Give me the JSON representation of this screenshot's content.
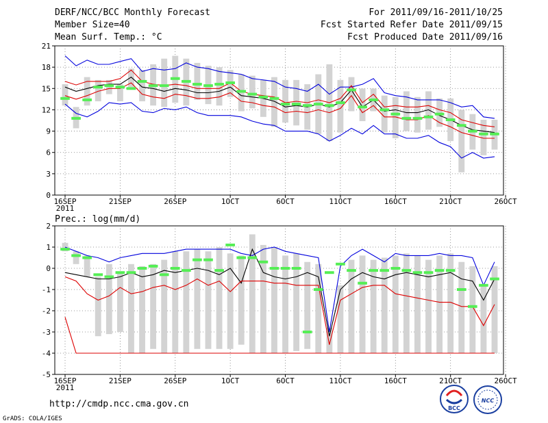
{
  "header": {
    "title": "DERF/NCC/BCC Monthly Forecast",
    "member_size": "Member Size=40",
    "variable": "Mean Surf. Temp.: °C",
    "period": "For 2011/09/16-2011/10/25",
    "fcst_started": "Fcst Started Refer Date 2011/09/15",
    "fcst_produced": "Fcst Produced Date 2011/09/16"
  },
  "footer": {
    "url": "http://cmdp.ncc.cma.gov.cn",
    "credit": "GrADS: COLA/IGES",
    "logo_left": "BCC",
    "logo_right": "NCC"
  },
  "colors": {
    "box": "#d3d3d3",
    "ensemble_mean": "#000000",
    "upper": "#0000dd",
    "lower": "#dd0000",
    "mid_red": "#dd0000",
    "marker": "#55ee55"
  },
  "chart_data": [
    {
      "type": "line",
      "title": "Mean Surf. Temp.: °C",
      "ylim": [
        0,
        21
      ],
      "yticks": [
        0,
        3,
        6,
        9,
        12,
        15,
        18,
        21
      ],
      "x_tick_labels": [
        "16SEP",
        "21SEP",
        "26SEP",
        "1OCT",
        "6OCT",
        "11OCT",
        "16OCT",
        "21OCT",
        "26OCT"
      ],
      "x_sub_label": "2011",
      "days": 40,
      "series": [
        {
          "name": "upper",
          "color": "#0000dd",
          "values": [
            19.6,
            18.2,
            19.0,
            18.4,
            18.4,
            18.8,
            19.2,
            17.4,
            17.8,
            17.6,
            17.8,
            18.6,
            18.0,
            17.8,
            17.4,
            17.2,
            17.0,
            16.4,
            16.2,
            16.0,
            15.2,
            15.0,
            14.6,
            15.6,
            14.2,
            15.2,
            15.2,
            15.6,
            16.4,
            14.4,
            14.0,
            13.8,
            13.4,
            13.4,
            13.4,
            13.0,
            12.4,
            12.6,
            11.0,
            10.8
          ]
        },
        {
          "name": "mid-upper",
          "color": "#dd0000",
          "values": [
            16.0,
            15.5,
            16.0,
            16.0,
            16.0,
            16.4,
            17.6,
            16.0,
            15.6,
            15.4,
            15.6,
            15.4,
            15.0,
            15.0,
            15.0,
            15.8,
            14.6,
            14.2,
            14.0,
            13.8,
            13.0,
            13.2,
            13.0,
            13.4,
            13.0,
            13.6,
            15.4,
            13.0,
            14.2,
            12.4,
            12.6,
            12.4,
            12.4,
            12.6,
            12.0,
            11.6,
            10.6,
            10.2,
            9.8,
            9.6
          ]
        },
        {
          "name": "ensemble-mean",
          "color": "#000000",
          "values": [
            15.2,
            14.6,
            15.0,
            15.4,
            15.6,
            15.6,
            16.6,
            15.2,
            15.0,
            14.6,
            15.0,
            14.8,
            14.4,
            14.4,
            14.6,
            15.2,
            14.0,
            13.8,
            13.6,
            13.2,
            12.4,
            12.6,
            12.4,
            12.8,
            12.4,
            13.0,
            14.8,
            12.4,
            13.4,
            11.8,
            12.0,
            11.6,
            11.6,
            12.0,
            11.2,
            10.6,
            9.8,
            9.2,
            9.0,
            8.8
          ]
        },
        {
          "name": "mid-lower",
          "color": "#dd0000",
          "values": [
            14.0,
            13.5,
            14.0,
            14.6,
            15.0,
            15.0,
            15.8,
            14.2,
            13.8,
            13.6,
            14.2,
            14.0,
            13.6,
            13.6,
            13.8,
            14.4,
            13.2,
            13.0,
            12.6,
            12.4,
            11.6,
            11.8,
            11.6,
            12.0,
            11.6,
            12.2,
            14.0,
            11.6,
            12.6,
            11.0,
            11.0,
            10.6,
            10.6,
            11.2,
            10.2,
            9.6,
            8.8,
            8.4,
            8.0,
            8.0
          ]
        },
        {
          "name": "lower",
          "color": "#0000dd",
          "values": [
            12.8,
            11.5,
            11.0,
            11.8,
            13.0,
            12.8,
            13.0,
            11.8,
            11.6,
            12.2,
            12.0,
            12.4,
            11.6,
            11.2,
            11.2,
            11.2,
            11.0,
            10.4,
            10.0,
            9.8,
            9.0,
            9.0,
            9.0,
            8.6,
            7.6,
            8.4,
            9.4,
            8.6,
            9.8,
            8.6,
            8.6,
            8.0,
            8.0,
            8.4,
            7.4,
            6.8,
            5.2,
            6.0,
            5.2,
            5.4
          ]
        }
      ],
      "boxes": [
        [
          12.6,
          15.6
        ],
        [
          9.4,
          12.4
        ],
        [
          12.6,
          16.6
        ],
        [
          13.2,
          16.2
        ],
        [
          14.2,
          16.2
        ],
        [
          13.2,
          15.6
        ],
        [
          15.2,
          17.8
        ],
        [
          13.2,
          17.6
        ],
        [
          12.6,
          18.4
        ],
        [
          12.4,
          19.2
        ],
        [
          13.0,
          19.6
        ],
        [
          12.6,
          19.2
        ],
        [
          13.4,
          18.6
        ],
        [
          12.8,
          18.2
        ],
        [
          12.6,
          18.0
        ],
        [
          13.8,
          17.6
        ],
        [
          11.8,
          17.0
        ],
        [
          12.2,
          16.8
        ],
        [
          11.0,
          16.2
        ],
        [
          9.6,
          16.6
        ],
        [
          10.2,
          16.2
        ],
        [
          9.8,
          16.2
        ],
        [
          9.2,
          15.6
        ],
        [
          8.6,
          17.0
        ],
        [
          7.6,
          18.4
        ],
        [
          8.8,
          16.2
        ],
        [
          11.8,
          16.6
        ],
        [
          10.4,
          15.0
        ],
        [
          11.8,
          15.0
        ],
        [
          8.8,
          14.0
        ],
        [
          8.0,
          13.8
        ],
        [
          9.0,
          14.6
        ],
        [
          8.8,
          13.8
        ],
        [
          9.2,
          14.6
        ],
        [
          9.6,
          13.6
        ],
        [
          7.6,
          13.6
        ],
        [
          3.2,
          12.0
        ],
        [
          6.4,
          11.4
        ],
        [
          5.6,
          10.6
        ],
        [
          6.4,
          10.6
        ]
      ],
      "markers": [
        13.6,
        10.8,
        13.4,
        15.2,
        15.4,
        15.2,
        15.0,
        16.0,
        15.4,
        15.4,
        16.4,
        16.0,
        15.6,
        15.4,
        15.6,
        15.8,
        14.6,
        14.2,
        13.8,
        13.6,
        12.8,
        12.8,
        12.6,
        12.8,
        12.6,
        13.0,
        14.8,
        12.4,
        13.4,
        12.0,
        11.4,
        10.8,
        10.8,
        11.0,
        11.4,
        10.6,
        9.8,
        9.0,
        8.6,
        8.6
      ]
    },
    {
      "type": "line",
      "title": "Prec.: log(mm/d)",
      "ylim": [
        -5,
        2
      ],
      "yticks": [
        -5,
        -4,
        -3,
        -2,
        -1,
        0,
        1,
        2
      ],
      "x_tick_labels": [
        "16SEP",
        "21SEP",
        "26SEP",
        "1OCT",
        "6OCT",
        "11OCT",
        "16OCT",
        "21OCT",
        "26OCT"
      ],
      "x_sub_label": "2011",
      "days": 40,
      "series": [
        {
          "name": "upper",
          "color": "#0000dd",
          "values": [
            1.0,
            0.8,
            0.6,
            0.5,
            0.3,
            0.5,
            0.6,
            0.7,
            0.7,
            0.7,
            0.8,
            0.9,
            0.9,
            0.9,
            0.9,
            0.9,
            0.7,
            0.6,
            0.9,
            1.0,
            0.8,
            0.7,
            0.6,
            0.5,
            -3.0,
            0.1,
            0.6,
            0.9,
            0.6,
            0.3,
            0.7,
            0.6,
            0.6,
            0.6,
            0.7,
            0.6,
            0.6,
            0.5,
            -0.8,
            0.3
          ]
        },
        {
          "name": "ensemble-mean",
          "color": "#000000",
          "values": [
            -0.2,
            -0.3,
            -0.4,
            -0.5,
            -0.5,
            -0.4,
            -0.2,
            -0.4,
            -0.3,
            -0.1,
            -0.2,
            -0.1,
            0.0,
            -0.1,
            -0.3,
            0.0,
            -0.7,
            0.9,
            -0.2,
            -0.4,
            -0.5,
            -0.4,
            -0.2,
            -0.4,
            -3.2,
            -1.0,
            -0.5,
            -0.2,
            -0.4,
            -0.5,
            -0.3,
            -0.2,
            -0.3,
            -0.4,
            -0.3,
            -0.2,
            -0.5,
            -0.6,
            -1.5,
            -0.5
          ]
        },
        {
          "name": "mid-lower",
          "color": "#dd0000",
          "values": [
            -0.4,
            -0.6,
            -1.2,
            -1.5,
            -1.3,
            -0.9,
            -1.2,
            -1.1,
            -0.9,
            -0.8,
            -1.0,
            -0.8,
            -0.5,
            -0.8,
            -0.6,
            -1.1,
            -0.6,
            -0.6,
            -0.6,
            -0.7,
            -0.7,
            -0.8,
            -0.8,
            -0.8,
            -3.6,
            -1.5,
            -1.2,
            -0.9,
            -0.8,
            -0.8,
            -1.2,
            -1.3,
            -1.4,
            -1.5,
            -1.6,
            -1.6,
            -1.8,
            -1.8,
            -2.7,
            -1.7
          ]
        },
        {
          "name": "lower",
          "color": "#dd0000",
          "values": [
            -2.3,
            -4,
            -4,
            -4,
            -4,
            -4,
            -4,
            -4,
            -4,
            -4,
            -4,
            -4,
            -4,
            -4,
            -4,
            -4,
            -4,
            -4,
            -4,
            -4,
            -4,
            -4,
            -4,
            -4,
            -4,
            -4,
            -4,
            -4,
            -4,
            -4,
            -4,
            -4,
            -4,
            -4,
            -4,
            -4,
            -4,
            -4,
            -4,
            -4
          ]
        }
      ],
      "boxes": [
        [
          0.8,
          1.2
        ],
        [
          0.2,
          0.8
        ],
        [
          -0.4,
          0.6
        ],
        [
          -3.2,
          -0.4
        ],
        [
          -3.1,
          0.2
        ],
        [
          -3.0,
          -0.2
        ],
        [
          -4.0,
          0.2
        ],
        [
          -4.0,
          0.1
        ],
        [
          -3.8,
          0.2
        ],
        [
          -4.0,
          0.4
        ],
        [
          -4.0,
          0.8
        ],
        [
          -4.0,
          0.8
        ],
        [
          -3.8,
          0.9
        ],
        [
          -3.8,
          0.8
        ],
        [
          -3.8,
          1.0
        ],
        [
          -3.8,
          0.7
        ],
        [
          -3.6,
          0.6
        ],
        [
          -4.0,
          1.6
        ],
        [
          -4.0,
          1.1
        ],
        [
          -4.0,
          1.0
        ],
        [
          -4.0,
          0.6
        ],
        [
          -3.9,
          0.7
        ],
        [
          -3.8,
          0.3
        ],
        [
          -4.0,
          0.2
        ],
        [
          -4.0,
          -2.8
        ],
        [
          -4.0,
          -0.8
        ],
        [
          -4.0,
          0.4
        ],
        [
          -4.0,
          0.6
        ],
        [
          -4.0,
          0.4
        ],
        [
          -4.0,
          0.5
        ],
        [
          -4.0,
          0.6
        ],
        [
          -4.0,
          0.7
        ],
        [
          -4.0,
          0.6
        ],
        [
          -4.0,
          0.4
        ],
        [
          -4.0,
          0.6
        ],
        [
          -4.0,
          0.7
        ],
        [
          -4.0,
          0.3
        ],
        [
          -4.0,
          0.1
        ],
        [
          -4.0,
          -0.8
        ],
        [
          -4.0,
          0.1
        ]
      ],
      "markers": [
        0.9,
        0.6,
        0.5,
        -0.3,
        -0.4,
        -0.2,
        -0.2,
        0.0,
        0.1,
        -0.3,
        0.0,
        -0.1,
        0.4,
        0.4,
        -0.1,
        1.1,
        0.5,
        0.5,
        0.3,
        0.0,
        0.0,
        0.0,
        -3.0,
        -1.0,
        -0.2,
        0.2,
        -0.1,
        -0.7,
        -0.1,
        -0.1,
        0.0,
        -0.1,
        -0.2,
        -0.2,
        -0.1,
        -0.1,
        -1.0,
        -1.8,
        -0.8,
        -0.5
      ]
    }
  ]
}
